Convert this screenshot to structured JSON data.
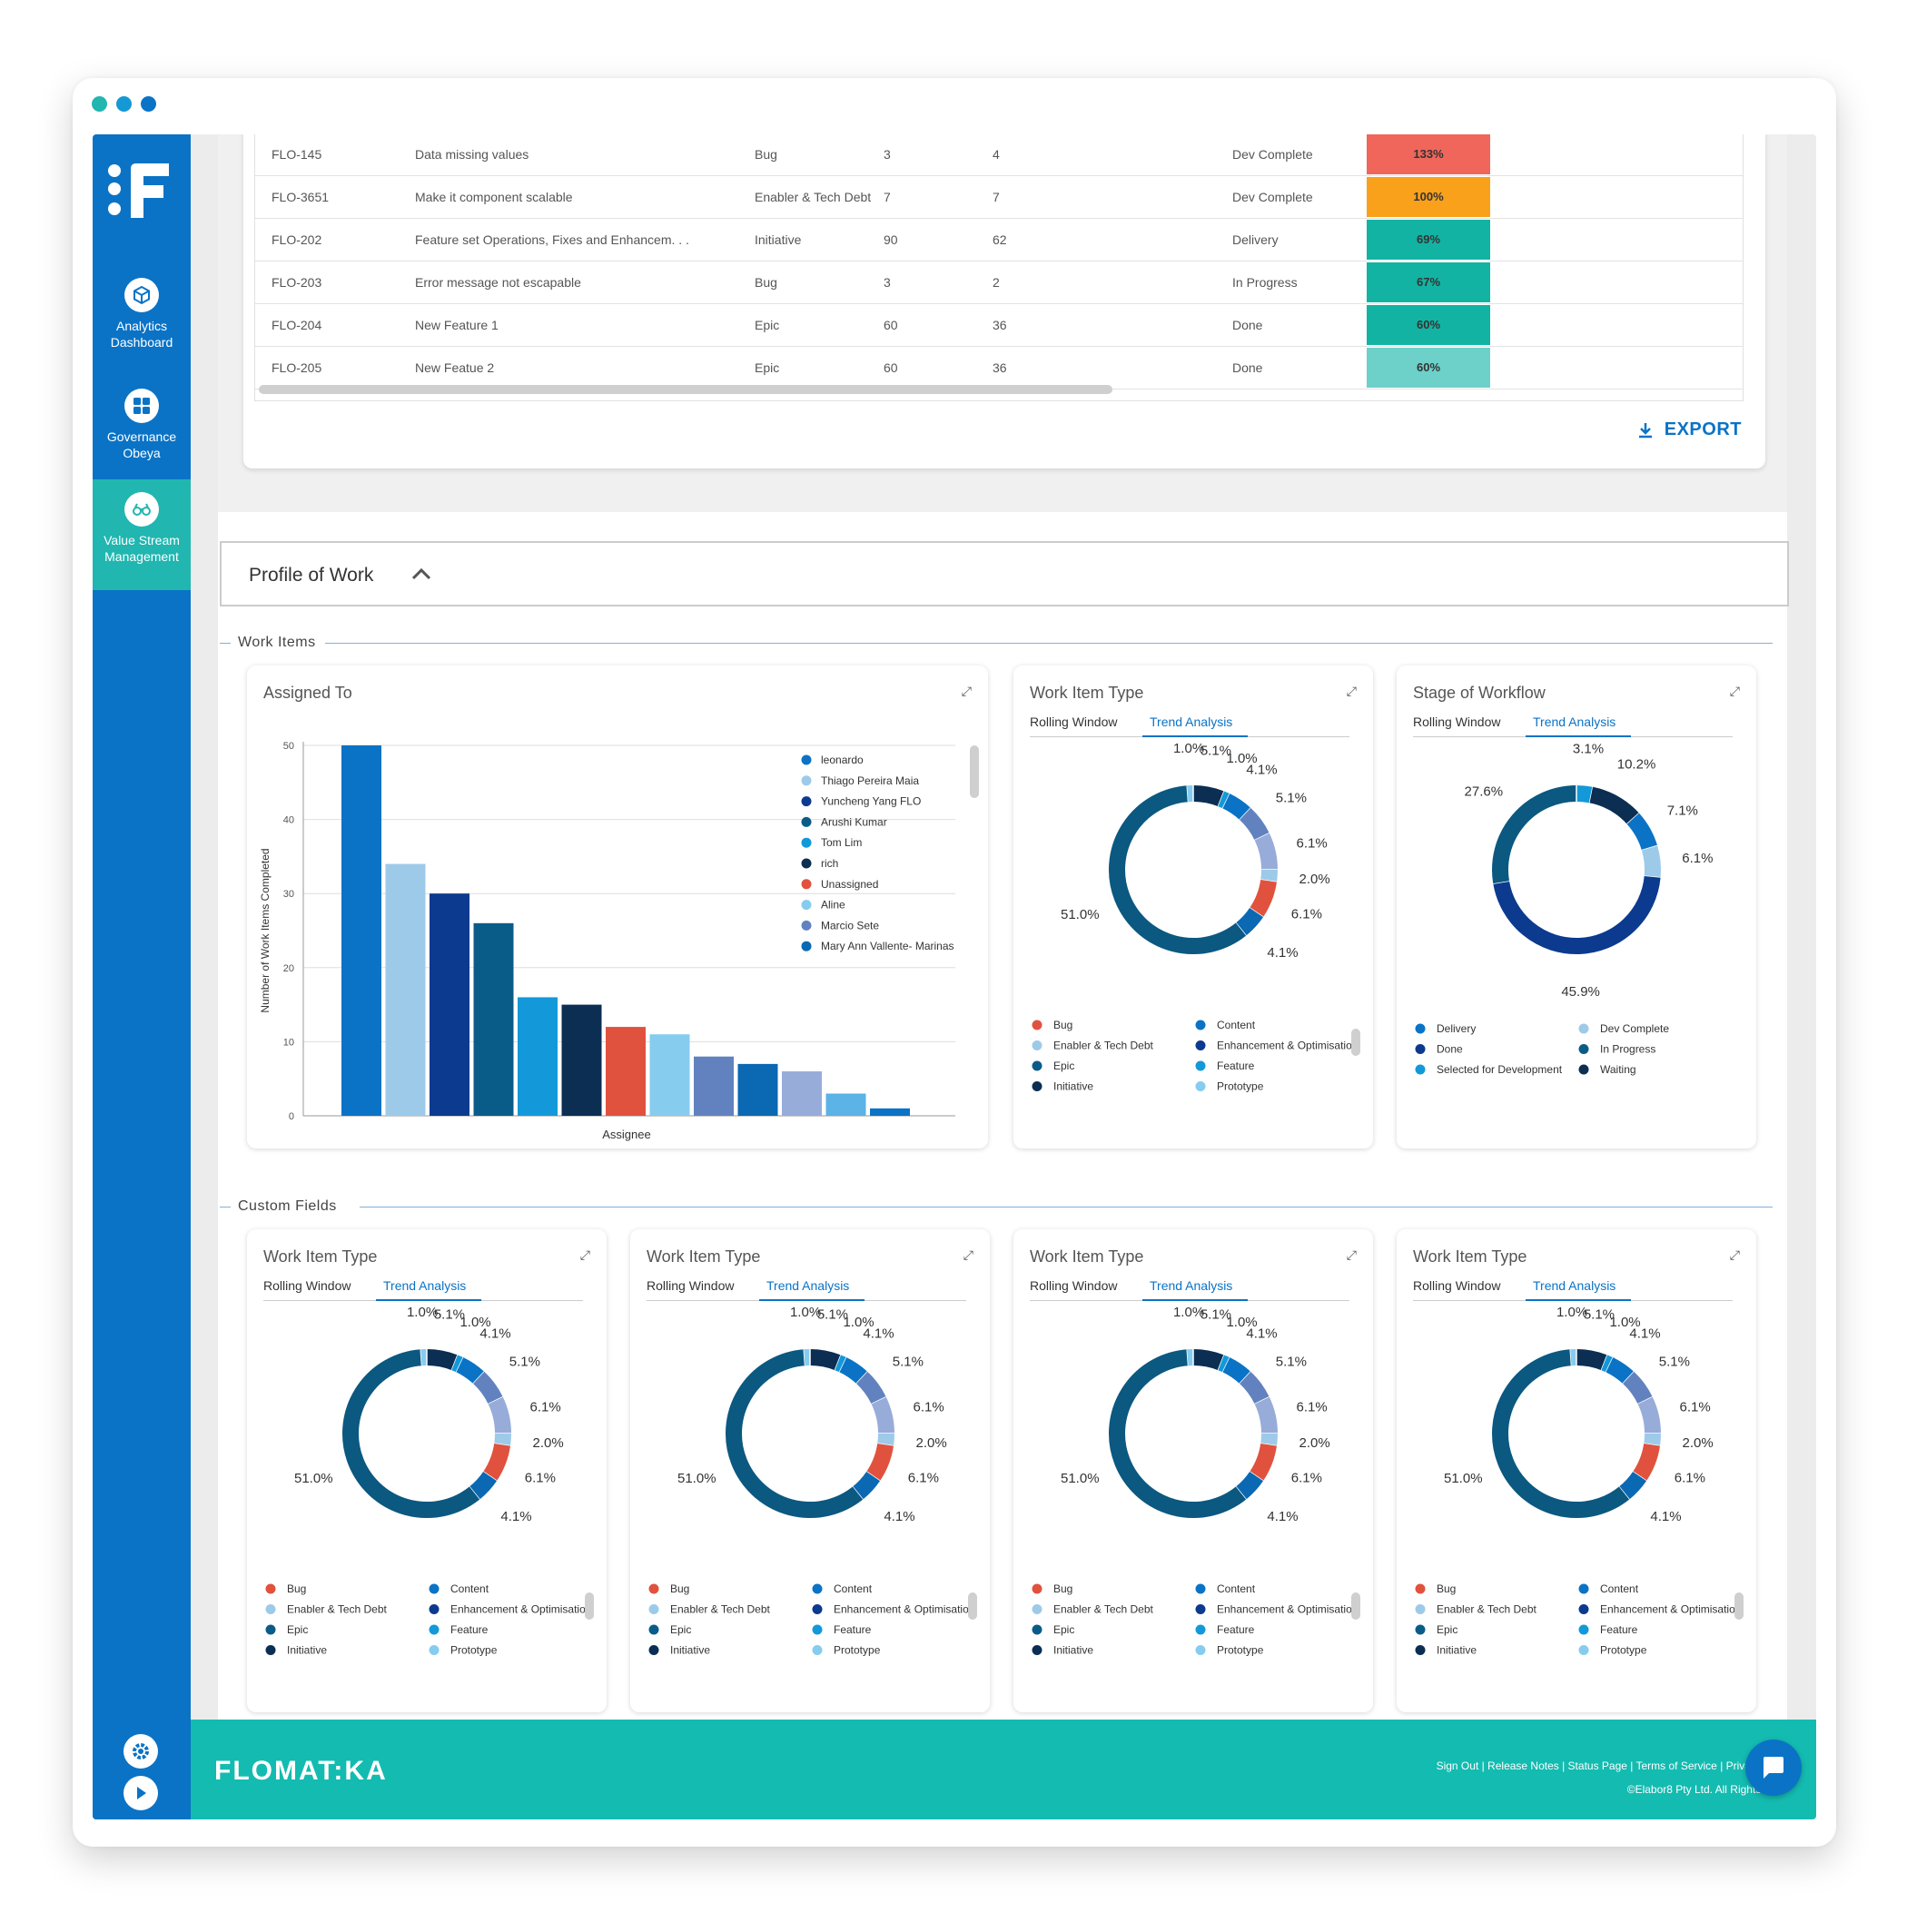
{
  "colors": {
    "sidebar": "#0a73c6",
    "active_nav": "#21b6b0",
    "footer": "#14bbb0",
    "accent": "#0a73c6",
    "window_dots": [
      "#21b6b0",
      "#1698d4",
      "#0a73c6"
    ]
  },
  "sidebar": {
    "items": [
      {
        "label": "Analytics Dashboard",
        "icon": "cube-icon"
      },
      {
        "label": "Governance Obeya",
        "icon": "grid-icon"
      },
      {
        "label": "Value Stream Management",
        "icon": "binoculars-icon"
      }
    ],
    "bottom_icons": [
      "gear-icon",
      "play-icon"
    ]
  },
  "table": {
    "rows": [
      {
        "id": "FLO-145",
        "title": "Data missing values",
        "type": "Bug",
        "a": "3",
        "b": "4",
        "pct": "133%",
        "pct_color": "#f0665a",
        "status": "Dev Complete"
      },
      {
        "id": "FLO-3651",
        "title": "Make it component scalable",
        "type": "Enabler & Tech Debt",
        "a": "7",
        "b": "7",
        "pct": "100%",
        "pct_color": "#f9a11b",
        "status": "Dev Complete"
      },
      {
        "id": "FLO-202",
        "title": "Feature set Operations, Fixes and Enhancem. . .",
        "type": "Initiative",
        "a": "90",
        "b": "62",
        "pct": "69%",
        "pct_color": "#13b3a3",
        "status": "Delivery"
      },
      {
        "id": "FLO-203",
        "title": "Error message not escapable",
        "type": "Bug",
        "a": "3",
        "b": "2",
        "pct": "67%",
        "pct_color": "#13b3a3",
        "status": "In Progress"
      },
      {
        "id": "FLO-204",
        "title": "New Feature 1",
        "type": "Epic",
        "a": "60",
        "b": "36",
        "pct": "60%",
        "pct_color": "#13b3a3",
        "status": "Done"
      },
      {
        "id": "FLO-205",
        "title": "New Featue 2",
        "type": "Epic",
        "a": "60",
        "b": "36",
        "pct": "60%",
        "pct_color": "#6dd1c9",
        "status": "Done"
      }
    ],
    "export_label": "EXPORT"
  },
  "profile": {
    "title": "Profile of Work",
    "work_items_label": "Work Items",
    "custom_fields_label": "Custom Fields"
  },
  "assigned_card": {
    "title": "Assigned To"
  },
  "wit_card": {
    "title": "Work Item Type",
    "tab1": "Rolling Window",
    "tab2": "Trend Analysis"
  },
  "sow_card": {
    "title": "Stage of Workflow",
    "tab1": "Rolling Window",
    "tab2": "Trend Analysis"
  },
  "custom_cards": [
    {
      "title": "Work Item Type",
      "tab1": "Rolling Window",
      "tab2": "Trend Analysis"
    },
    {
      "title": "Work Item Type",
      "tab1": "Rolling Window",
      "tab2": "Trend Analysis"
    },
    {
      "title": "Work Item Type",
      "tab1": "Rolling Window",
      "tab2": "Trend Analysis"
    },
    {
      "title": "Work Item Type",
      "tab1": "Rolling Window",
      "tab2": "Trend Analysis"
    }
  ],
  "chart_data": [
    {
      "type": "bar",
      "title": "Assigned To",
      "xlabel": "Assignee",
      "ylabel": "Number of Work Items Completed",
      "ylim": [
        0,
        50
      ],
      "yticks": [
        0,
        10,
        20,
        30,
        40,
        50
      ],
      "grid": true,
      "legend_position": "top-right",
      "categories": [
        "leonardo",
        "Thiago Pereira Maia",
        "Yuncheng Yang FLO",
        "Arushi Kumar",
        "Tom Lim",
        "rich",
        "Unassigned",
        "Aline",
        "Marcio Sete",
        "Mary Ann Vallente- Marinas",
        "",
        "",
        ""
      ],
      "values": [
        50,
        34,
        30,
        26,
        16,
        15,
        12,
        11,
        8,
        7,
        6,
        3,
        1
      ],
      "colors": [
        "#0a73c6",
        "#9ecae9",
        "#0b3a8f",
        "#0a5c88",
        "#1399d9",
        "#0b2e52",
        "#e0523e",
        "#86ccee",
        "#6282bf",
        "#0b68b3",
        "#98acd9",
        "#5bb3e6",
        "#0a73c6"
      ],
      "legend": [
        {
          "name": "leonardo",
          "color": "#0a73c6"
        },
        {
          "name": "Thiago Pereira Maia",
          "color": "#9ecae9"
        },
        {
          "name": "Yuncheng Yang FLO",
          "color": "#0b3a8f"
        },
        {
          "name": "Arushi Kumar",
          "color": "#0a5c88"
        },
        {
          "name": "Tom Lim",
          "color": "#1399d9"
        },
        {
          "name": "rich",
          "color": "#0b2e52"
        },
        {
          "name": "Unassigned",
          "color": "#e0523e"
        },
        {
          "name": "Aline",
          "color": "#86ccee"
        },
        {
          "name": "Marcio Sete",
          "color": "#6282bf"
        },
        {
          "name": "Mary Ann Vallente- Marinas",
          "color": "#0b68b3"
        }
      ]
    },
    {
      "type": "pie",
      "title": "Work Item Type",
      "donut": true,
      "slices": [
        {
          "label": "5.1%",
          "value": 5.1,
          "color": "#0b2e52"
        },
        {
          "label": "1.0%",
          "value": 1.0,
          "color": "#1399d9"
        },
        {
          "label": "4.1%",
          "value": 4.1,
          "color": "#0a73c6"
        },
        {
          "label": "5.1%",
          "value": 5.1,
          "color": "#6282bf"
        },
        {
          "label": "6.1%",
          "value": 6.1,
          "color": "#98acd9"
        },
        {
          "label": "2.0%",
          "value": 2.0,
          "color": "#9ecae9"
        },
        {
          "label": "6.1%",
          "value": 6.1,
          "color": "#e0523e"
        },
        {
          "label": "4.1%",
          "value": 4.1,
          "color": "#0b68b3"
        },
        {
          "label": "51.0%",
          "value": 51.0,
          "color": "#0b5880"
        },
        {
          "label": "1.0%",
          "value": 1.0,
          "color": "#86ccee"
        }
      ],
      "legend": [
        {
          "name": "Bug",
          "color": "#e0523e"
        },
        {
          "name": "Content",
          "color": "#0a73c6"
        },
        {
          "name": "Enabler & Tech Debt",
          "color": "#9ecae9"
        },
        {
          "name": "Enhancement & Optimisation",
          "color": "#0b3a8f"
        },
        {
          "name": "Epic",
          "color": "#0a5c88"
        },
        {
          "name": "Feature",
          "color": "#1399d9"
        },
        {
          "name": "Initiative",
          "color": "#0b2e52"
        },
        {
          "name": "Prototype",
          "color": "#86ccee"
        }
      ]
    },
    {
      "type": "pie",
      "title": "Stage of Workflow",
      "donut": true,
      "slices": [
        {
          "label": "3.1%",
          "value": 3.1,
          "color": "#1399d9"
        },
        {
          "label": "10.2%",
          "value": 10.2,
          "color": "#0b2e52"
        },
        {
          "label": "7.1%",
          "value": 7.1,
          "color": "#0a73c6"
        },
        {
          "label": "6.1%",
          "value": 6.1,
          "color": "#9ecae9"
        },
        {
          "label": "45.9%",
          "value": 45.9,
          "color": "#0b3a8f"
        },
        {
          "label": "27.6%",
          "value": 27.6,
          "color": "#0b5880"
        }
      ],
      "legend": [
        {
          "name": "Delivery",
          "color": "#0a73c6"
        },
        {
          "name": "Dev Complete",
          "color": "#9ecae9"
        },
        {
          "name": "Done",
          "color": "#0b3a8f"
        },
        {
          "name": "In Progress",
          "color": "#0a5c88"
        },
        {
          "name": "Selected for Development",
          "color": "#1399d9"
        },
        {
          "name": "Waiting",
          "color": "#0b2e52"
        }
      ]
    }
  ],
  "footer": {
    "brand": "FLOMAT:KA",
    "links": "Sign Out | Release Notes | Status Page | Terms of Service | Privacy Po",
    "copyright": "©Elabor8 Pty Ltd. All Rights Re"
  }
}
